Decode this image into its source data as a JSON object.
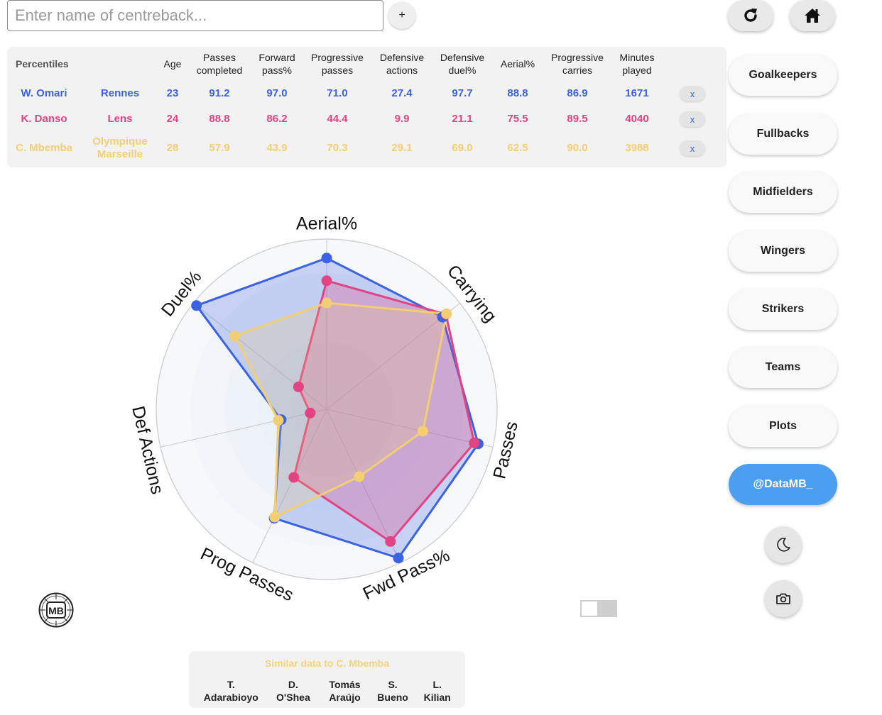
{
  "search": {
    "placeholder": "Enter name of centreback...",
    "add_label": "+"
  },
  "top_icons": {
    "refresh": "refresh-icon",
    "home": "home-icon"
  },
  "table": {
    "title": "Percentiles",
    "columns": [
      "Age",
      "Passes completed",
      "Forward pass%",
      "Progressive passes",
      "Defensive actions",
      "Defensive duel%",
      "Aerial%",
      "Progressive carries",
      "Minutes played"
    ],
    "remove_label": "x",
    "rows": [
      {
        "name": "W. Omari",
        "team": "Rennes",
        "color": "#3b62e0",
        "values": [
          "23",
          "91.2",
          "97.0",
          "71.0",
          "27.4",
          "97.7",
          "88.8",
          "86.9",
          "1671"
        ]
      },
      {
        "name": "K. Danso",
        "team": "Lens",
        "color": "#e24483",
        "values": [
          "24",
          "88.8",
          "86.2",
          "44.4",
          "9.9",
          "21.1",
          "75.5",
          "89.5",
          "4040"
        ]
      },
      {
        "name": "C. Mbemba",
        "team": "Olympique Marseille",
        "color": "#f3ce72",
        "values": [
          "28",
          "57.9",
          "43.9",
          "70.3",
          "29.1",
          "69.0",
          "62.5",
          "90.0",
          "3988"
        ]
      }
    ]
  },
  "chart_data": {
    "type": "radar",
    "range": [
      0,
      100
    ],
    "axes": [
      "Aerial%",
      "Carrying",
      "Passes",
      "Fwd Pass%",
      "Prog Passes",
      "Def Actions",
      "Duel%"
    ],
    "series": [
      {
        "name": "W. Omari",
        "color": "#3b62e0",
        "values": [
          88.8,
          86.9,
          91.2,
          97.0,
          71.0,
          27.4,
          97.7
        ]
      },
      {
        "name": "K. Danso",
        "color": "#e24483",
        "values": [
          75.5,
          89.5,
          88.8,
          86.2,
          44.4,
          9.9,
          21.1
        ]
      },
      {
        "name": "C. Mbemba",
        "color": "#f3ce72",
        "values": [
          62.5,
          90.0,
          57.9,
          43.9,
          70.3,
          29.1,
          69.0
        ]
      }
    ]
  },
  "sidebar": {
    "buttons": [
      "Goalkeepers",
      "Fullbacks",
      "Midfielders",
      "Wingers",
      "Strikers",
      "Teams",
      "Plots"
    ],
    "handle": "@DataMB_",
    "handle_color": "#4c9ff0",
    "dark_mode_icon": "moon-icon",
    "screenshot_icon": "camera-icon"
  },
  "logo": {
    "text": "MB"
  },
  "similar": {
    "title": "Similar data to C. Mbemba",
    "players": [
      "T. Adarabioyo",
      "D. O'Shea",
      "Tomás Araújo",
      "S. Bueno",
      "L. Kilian"
    ]
  }
}
